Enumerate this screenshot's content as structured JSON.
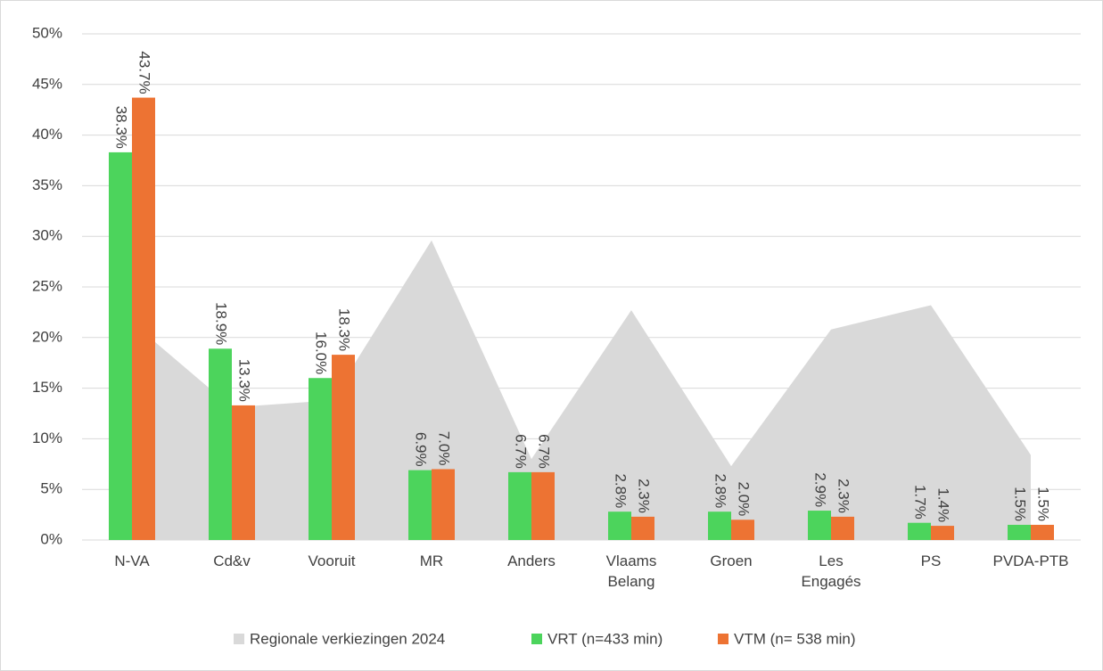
{
  "chart_data": {
    "type": "bar",
    "categories": [
      "N-VA",
      "Cd&v",
      "Vooruit",
      "MR",
      "Anders",
      "Vlaams Belang",
      "Groen",
      "Les Engagés",
      "PS",
      "PVDA-PTB"
    ],
    "series": [
      {
        "name": "Regionale verkiezingen 2024",
        "type": "area",
        "color": "#d9d9d9",
        "values": [
          21.5,
          13.1,
          13.8,
          29.6,
          8.0,
          22.7,
          7.3,
          20.8,
          23.2,
          8.4
        ]
      },
      {
        "name": "VRT (n=433 min)",
        "type": "bar",
        "color": "#4cd45c",
        "values": [
          38.3,
          18.9,
          16.0,
          6.9,
          6.7,
          2.8,
          2.8,
          2.9,
          1.7,
          1.5
        ],
        "value_labels": [
          "38.3%",
          "18.9%",
          "16.0%",
          "6.9%",
          "6.7%",
          "2.8%",
          "2.8%",
          "2.9%",
          "1.7%",
          "1.5%"
        ]
      },
      {
        "name": "VTM (n= 538 min)",
        "type": "bar",
        "color": "#ed7333",
        "values": [
          43.7,
          13.3,
          18.3,
          7.0,
          6.7,
          2.3,
          2.0,
          2.3,
          1.4,
          1.5
        ],
        "value_labels": [
          "43.7%",
          "13.3%",
          "18.3%",
          "7.0%",
          "6.7%",
          "2.3%",
          "2.0%",
          "2.3%",
          "1.4%",
          "1.5%"
        ]
      }
    ],
    "ylim": [
      0,
      50
    ],
    "yticks": [
      {
        "value": 0,
        "label": "0%"
      },
      {
        "value": 5,
        "label": "5%"
      },
      {
        "value": 10,
        "label": "10%"
      },
      {
        "value": 15,
        "label": "15%"
      },
      {
        "value": 20,
        "label": "20%"
      },
      {
        "value": 25,
        "label": "25%"
      },
      {
        "value": 30,
        "label": "30%"
      },
      {
        "value": 35,
        "label": "35%"
      },
      {
        "value": 40,
        "label": "40%"
      },
      {
        "value": 45,
        "label": "45%"
      },
      {
        "value": 50,
        "label": "50%"
      }
    ],
    "grid": true,
    "legend": "bottom"
  }
}
